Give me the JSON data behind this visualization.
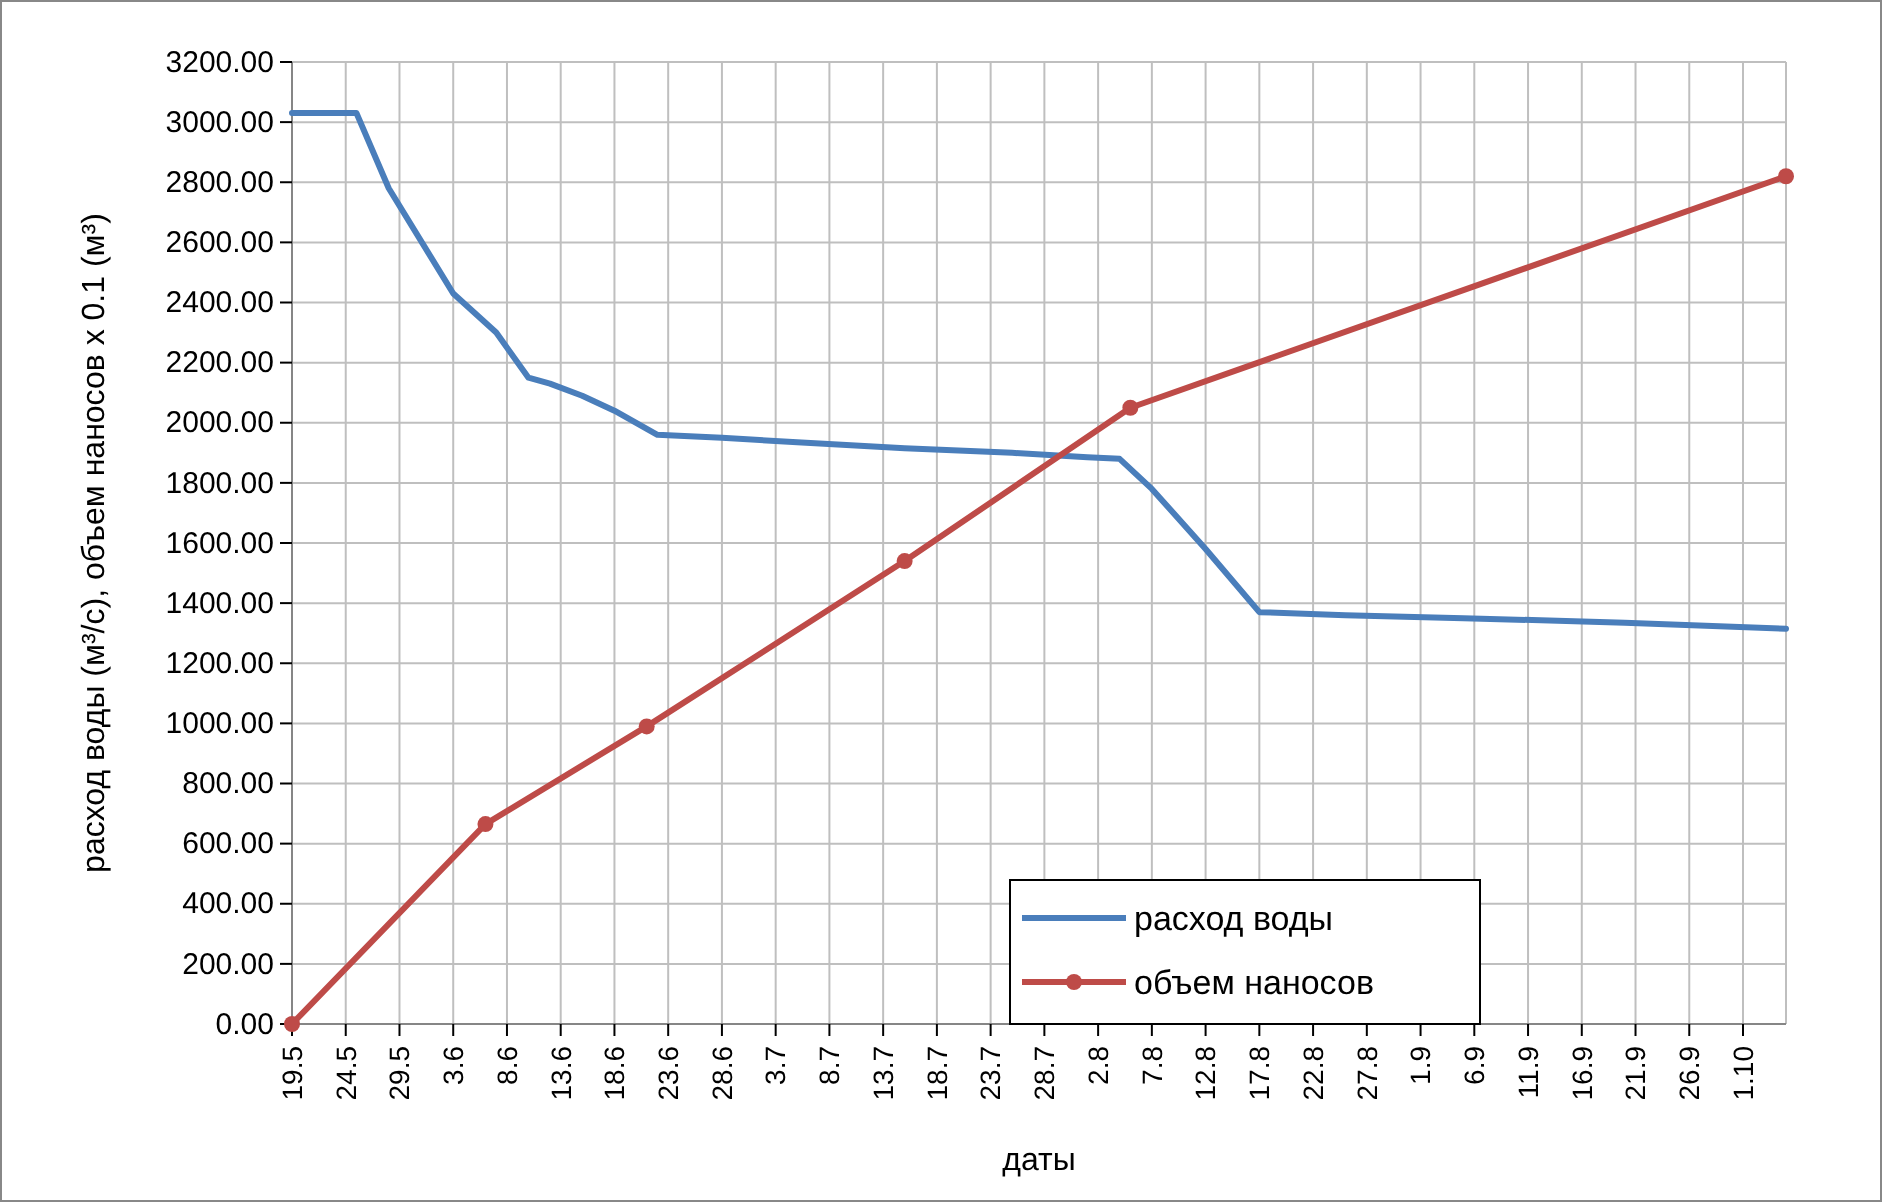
{
  "chart_data": {
    "type": "line",
    "xlabel": "даты",
    "ylabel": "расход воды (м³/с), объем наносов х 0.1 (м³)",
    "xlim": [
      "--05-19",
      "--10-05"
    ],
    "xticks": [
      {
        "value": "--05-19",
        "label": "19.5"
      },
      {
        "value": "--05-24",
        "label": "24.5"
      },
      {
        "value": "--05-29",
        "label": "29.5"
      },
      {
        "value": "--06-03",
        "label": "3.6"
      },
      {
        "value": "--06-08",
        "label": "8.6"
      },
      {
        "value": "--06-13",
        "label": "13.6"
      },
      {
        "value": "--06-18",
        "label": "18.6"
      },
      {
        "value": "--06-23",
        "label": "23.6"
      },
      {
        "value": "--06-28",
        "label": "28.6"
      },
      {
        "value": "--07-03",
        "label": "3.7"
      },
      {
        "value": "--07-08",
        "label": "8.7"
      },
      {
        "value": "--07-13",
        "label": "13.7"
      },
      {
        "value": "--07-18",
        "label": "18.7"
      },
      {
        "value": "--07-23",
        "label": "23.7"
      },
      {
        "value": "--07-28",
        "label": "28.7"
      },
      {
        "value": "--08-02",
        "label": "2.8"
      },
      {
        "value": "--08-07",
        "label": "7.8"
      },
      {
        "value": "--08-12",
        "label": "12.8"
      },
      {
        "value": "--08-17",
        "label": "17.8"
      },
      {
        "value": "--08-22",
        "label": "22.8"
      },
      {
        "value": "--08-27",
        "label": "27.8"
      },
      {
        "value": "--09-01",
        "label": "1.9"
      },
      {
        "value": "--09-06",
        "label": "6.9"
      },
      {
        "value": "--09-11",
        "label": "11.9"
      },
      {
        "value": "--09-16",
        "label": "16.9"
      },
      {
        "value": "--09-21",
        "label": "21.9"
      },
      {
        "value": "--09-26",
        "label": "26.9"
      },
      {
        "value": "--10-01",
        "label": "1.10"
      }
    ],
    "ylim": [
      0,
      3200
    ],
    "yticks": [
      {
        "value": 0,
        "label": "0.00"
      },
      {
        "value": 200,
        "label": "200.00"
      },
      {
        "value": 400,
        "label": "400.00"
      },
      {
        "value": 600,
        "label": "600.00"
      },
      {
        "value": 800,
        "label": "800.00"
      },
      {
        "value": 1000,
        "label": "1000.00"
      },
      {
        "value": 1200,
        "label": "1200.00"
      },
      {
        "value": 1400,
        "label": "1400.00"
      },
      {
        "value": 1600,
        "label": "1600.00"
      },
      {
        "value": 1800,
        "label": "1800.00"
      },
      {
        "value": 2000,
        "label": "2000.00"
      },
      {
        "value": 2200,
        "label": "2200.00"
      },
      {
        "value": 2400,
        "label": "2400.00"
      },
      {
        "value": 2600,
        "label": "2600.00"
      },
      {
        "value": 2800,
        "label": "2800.00"
      },
      {
        "value": 3000,
        "label": "3000.00"
      },
      {
        "value": 3200,
        "label": "3200.00"
      }
    ],
    "grid": true,
    "legend": "bottom right",
    "series": [
      {
        "name": "расход воды",
        "color": "#4a7ebb",
        "marker": "none",
        "x": [
          "--05-19",
          "--05-25",
          "--05-28",
          "--06-03",
          "--06-07",
          "--06-10",
          "--06-12",
          "--06-15",
          "--06-18",
          "--06-22",
          "--06-28",
          "--07-05",
          "--07-15",
          "--07-25",
          "--08-01",
          "--08-04",
          "--08-07",
          "--08-12",
          "--08-17",
          "--08-25",
          "--09-05",
          "--09-20",
          "--10-05"
        ],
        "values": [
          3030,
          3030,
          2780,
          2430,
          2300,
          2150,
          2130,
          2090,
          2040,
          1960,
          1950,
          1935,
          1915,
          1900,
          1885,
          1880,
          1780,
          1580,
          1370,
          1360,
          1350,
          1335,
          1315
        ]
      },
      {
        "name": "объем наносов",
        "color": "#be4b48",
        "marker": "circle",
        "x": [
          "--05-19",
          "--06-06",
          "--06-21",
          "--07-15",
          "--08-05",
          "--10-05"
        ],
        "values": [
          0,
          665,
          990,
          1540,
          2050,
          2820
        ]
      }
    ]
  }
}
